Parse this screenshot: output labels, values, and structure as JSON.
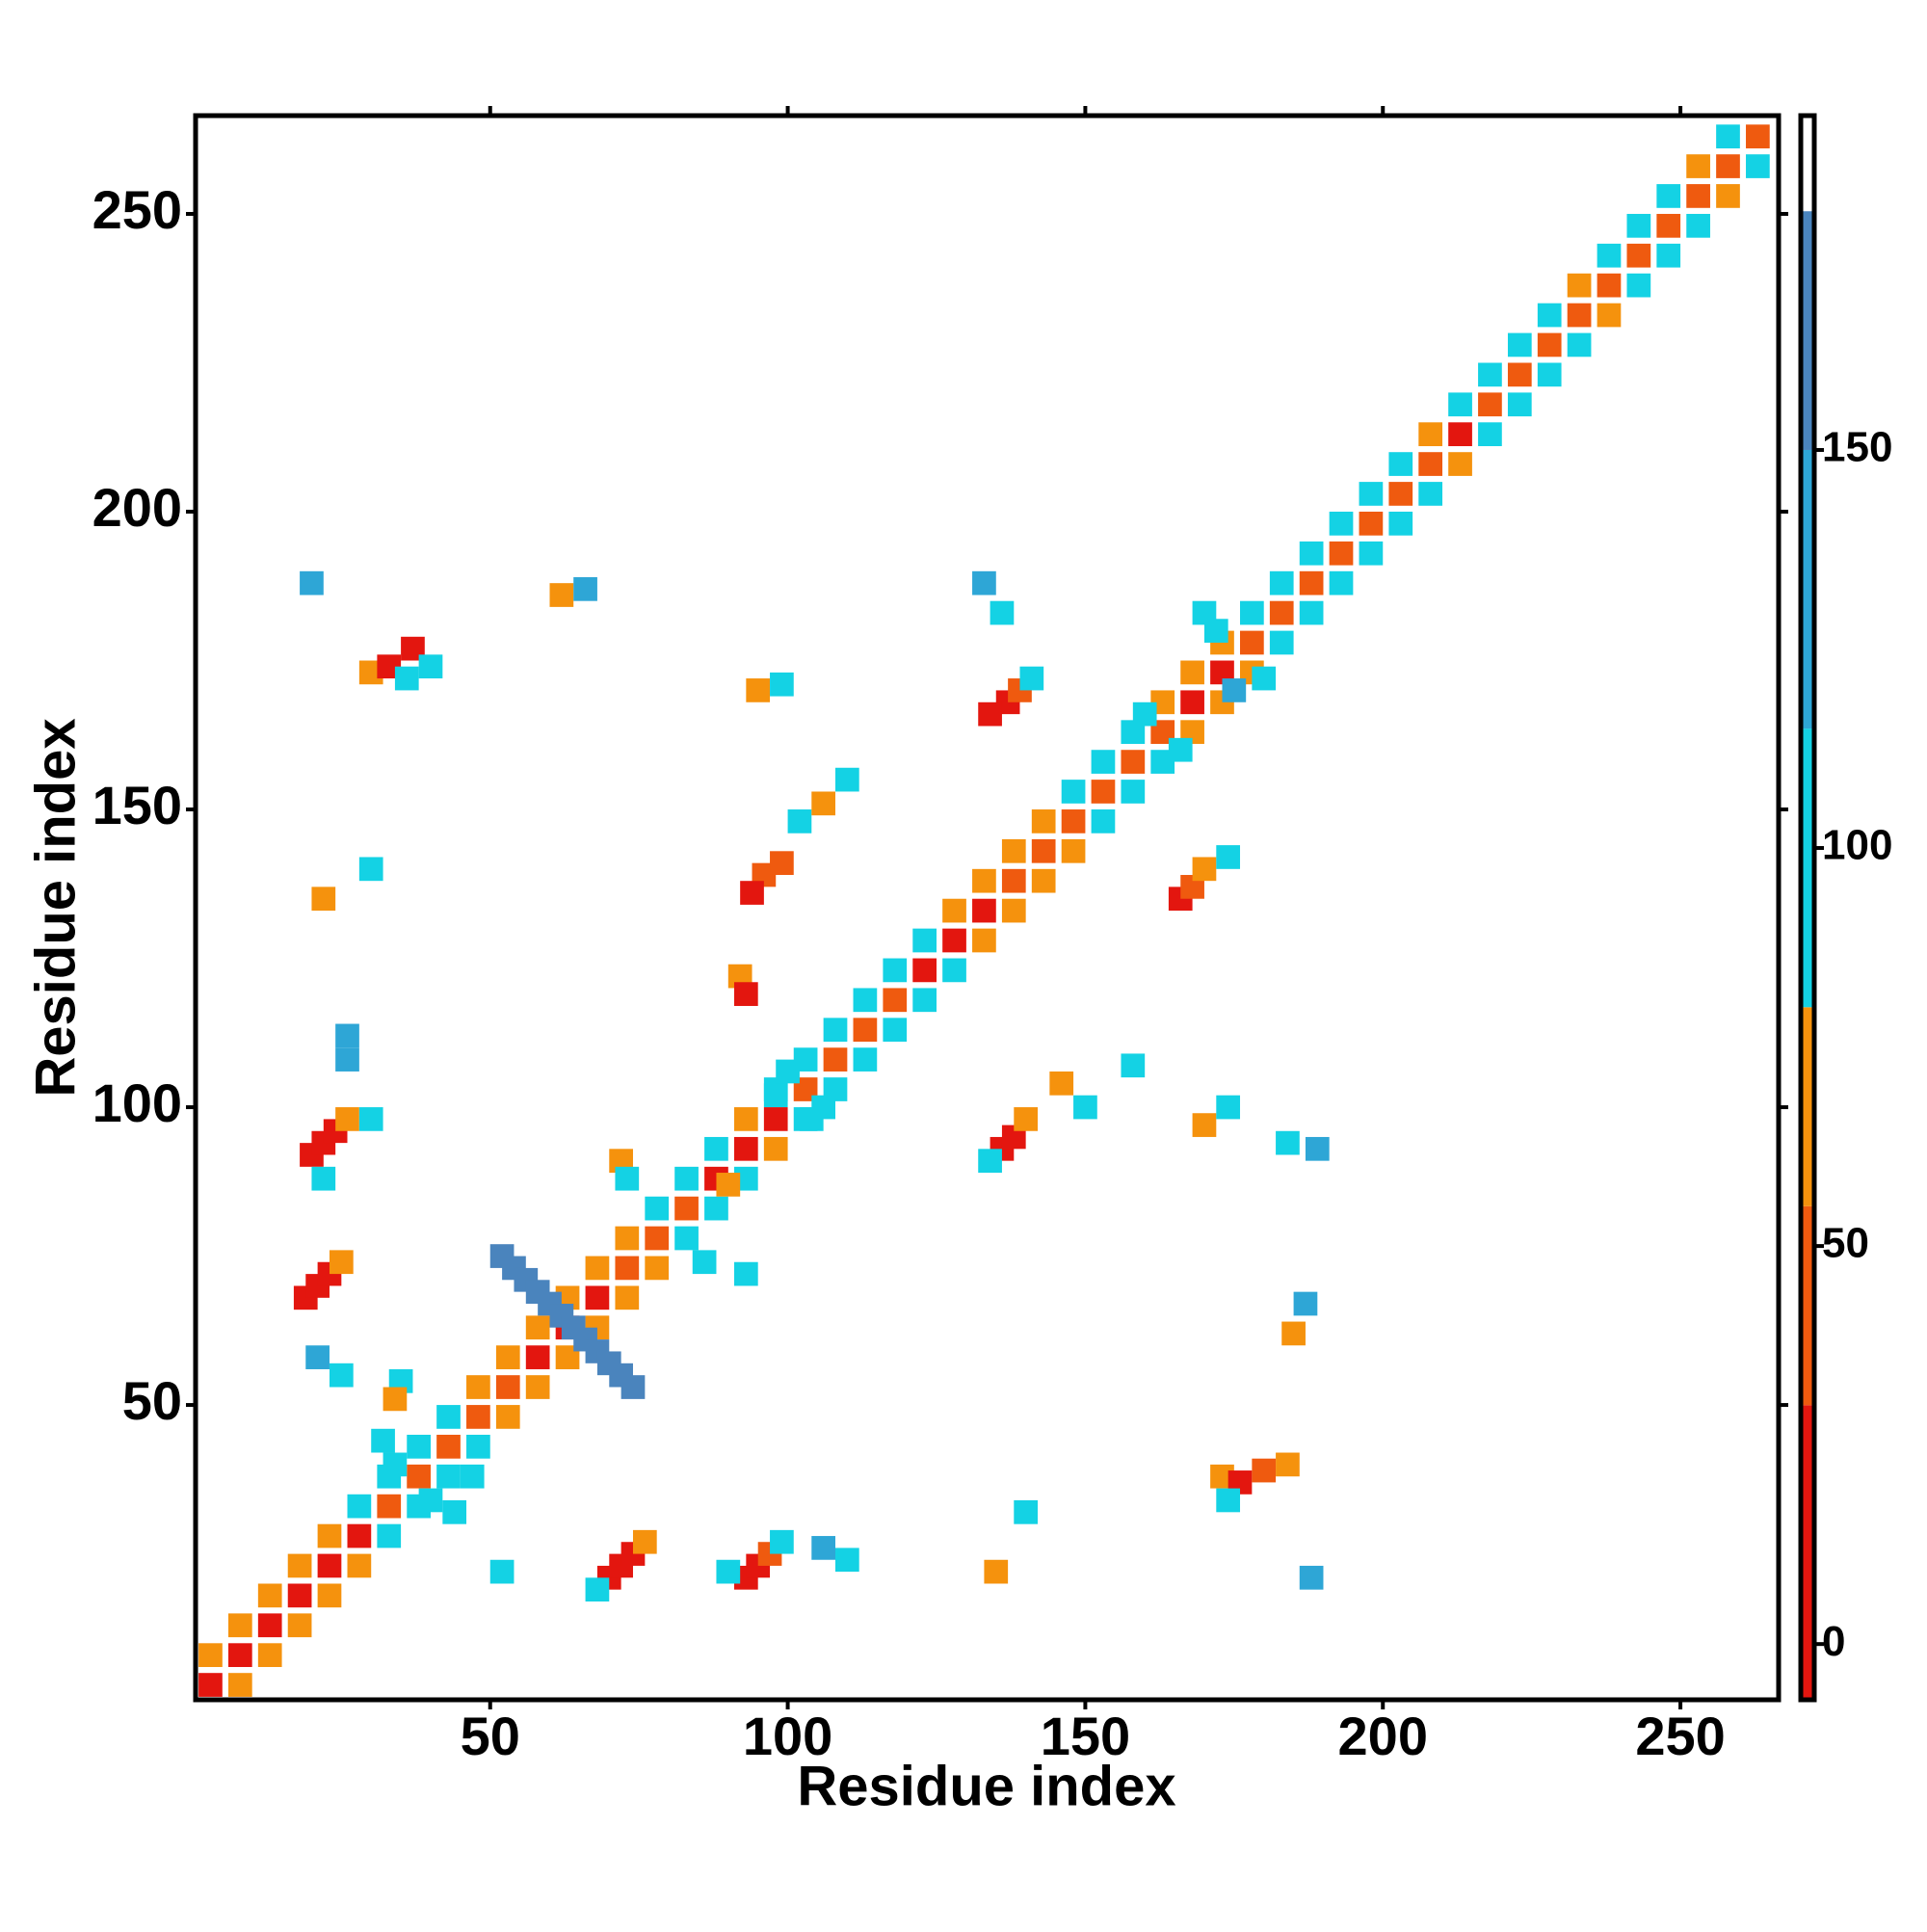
{
  "chart_data": {
    "type": "heatmap",
    "x_label": "Residue index",
    "y_label": "Residue index",
    "xlim": [
      0.5,
      266.5
    ],
    "ylim": [
      0.5,
      266.5
    ],
    "xticks": [
      50,
      100,
      150,
      200,
      250
    ],
    "yticks": [
      50,
      100,
      150,
      200,
      250
    ],
    "clim": [
      -7,
      192
    ],
    "cticks": [
      0,
      50,
      100,
      150
    ],
    "colorscale": [
      {
        "from": -7,
        "to": 30,
        "color": "#e3160f"
      },
      {
        "from": 30,
        "to": 55,
        "color": "#ef5a0f"
      },
      {
        "from": 55,
        "to": 80,
        "color": "#f5920d"
      },
      {
        "from": 80,
        "to": 115,
        "color": "#14d2e4"
      },
      {
        "from": 115,
        "to": 150,
        "color": "#2ea6d6"
      },
      {
        "from": 150,
        "to": 180,
        "color": "#4a84bd"
      },
      {
        "from": 180,
        "to": 192,
        "color": "#ffffff"
      }
    ],
    "cells": [
      [
        3,
        3,
        10
      ],
      [
        8,
        8,
        10
      ],
      [
        13,
        13,
        10
      ],
      [
        18,
        18,
        10
      ],
      [
        23,
        23,
        10
      ],
      [
        28,
        28,
        10
      ],
      [
        33,
        33,
        40
      ],
      [
        38,
        38,
        40
      ],
      [
        43,
        43,
        40
      ],
      [
        48,
        48,
        40
      ],
      [
        53,
        53,
        40
      ],
      [
        58,
        58,
        10
      ],
      [
        63,
        63,
        10
      ],
      [
        68,
        68,
        10
      ],
      [
        73,
        73,
        40
      ],
      [
        78,
        78,
        40
      ],
      [
        83,
        83,
        40
      ],
      [
        88,
        88,
        10
      ],
      [
        93,
        93,
        10
      ],
      [
        98,
        98,
        10
      ],
      [
        103,
        103,
        40
      ],
      [
        108,
        108,
        40
      ],
      [
        113,
        113,
        40
      ],
      [
        118,
        118,
        40
      ],
      [
        123,
        123,
        10
      ],
      [
        128,
        128,
        10
      ],
      [
        133,
        133,
        10
      ],
      [
        138,
        138,
        40
      ],
      [
        143,
        143,
        40
      ],
      [
        148,
        148,
        40
      ],
      [
        153,
        153,
        40
      ],
      [
        158,
        158,
        40
      ],
      [
        163,
        163,
        40
      ],
      [
        168,
        168,
        10
      ],
      [
        173,
        173,
        10
      ],
      [
        178,
        178,
        40
      ],
      [
        183,
        183,
        40
      ],
      [
        188,
        188,
        40
      ],
      [
        193,
        193,
        40
      ],
      [
        198,
        198,
        40
      ],
      [
        203,
        203,
        40
      ],
      [
        208,
        208,
        40
      ],
      [
        213,
        213,
        10
      ],
      [
        218,
        218,
        40
      ],
      [
        223,
        223,
        40
      ],
      [
        228,
        228,
        40
      ],
      [
        233,
        233,
        40
      ],
      [
        238,
        238,
        40
      ],
      [
        243,
        243,
        40
      ],
      [
        248,
        248,
        40
      ],
      [
        253,
        253,
        40
      ],
      [
        258,
        258,
        40
      ],
      [
        263,
        263,
        40
      ],
      [
        3,
        8,
        60
      ],
      [
        8,
        3,
        60
      ],
      [
        8,
        13,
        60
      ],
      [
        13,
        8,
        60
      ],
      [
        13,
        18,
        60
      ],
      [
        18,
        13,
        60
      ],
      [
        18,
        23,
        60
      ],
      [
        23,
        18,
        60
      ],
      [
        23,
        28,
        60
      ],
      [
        28,
        23,
        60
      ],
      [
        28,
        33,
        95
      ],
      [
        33,
        28,
        95
      ],
      [
        33,
        38,
        95
      ],
      [
        38,
        33,
        95
      ],
      [
        38,
        43,
        95
      ],
      [
        43,
        38,
        95
      ],
      [
        43,
        48,
        95
      ],
      [
        48,
        43,
        95
      ],
      [
        48,
        53,
        60
      ],
      [
        53,
        48,
        60
      ],
      [
        53,
        58,
        60
      ],
      [
        58,
        53,
        60
      ],
      [
        58,
        63,
        60
      ],
      [
        63,
        58,
        60
      ],
      [
        63,
        68,
        60
      ],
      [
        68,
        63,
        60
      ],
      [
        68,
        73,
        60
      ],
      [
        73,
        68,
        60
      ],
      [
        73,
        78,
        60
      ],
      [
        78,
        73,
        60
      ],
      [
        78,
        83,
        95
      ],
      [
        83,
        78,
        95
      ],
      [
        83,
        88,
        95
      ],
      [
        88,
        83,
        95
      ],
      [
        88,
        93,
        95
      ],
      [
        93,
        88,
        95
      ],
      [
        93,
        98,
        60
      ],
      [
        98,
        93,
        60
      ],
      [
        98,
        103,
        95
      ],
      [
        103,
        98,
        95
      ],
      [
        103,
        108,
        95
      ],
      [
        108,
        103,
        95
      ],
      [
        108,
        113,
        95
      ],
      [
        113,
        108,
        95
      ],
      [
        113,
        118,
        95
      ],
      [
        118,
        113,
        95
      ],
      [
        118,
        123,
        95
      ],
      [
        123,
        118,
        95
      ],
      [
        123,
        128,
        95
      ],
      [
        128,
        123,
        95
      ],
      [
        128,
        133,
        60
      ],
      [
        133,
        128,
        60
      ],
      [
        133,
        138,
        60
      ],
      [
        138,
        133,
        60
      ],
      [
        138,
        143,
        60
      ],
      [
        143,
        138,
        60
      ],
      [
        143,
        148,
        60
      ],
      [
        148,
        143,
        60
      ],
      [
        148,
        153,
        95
      ],
      [
        153,
        148,
        95
      ],
      [
        153,
        158,
        95
      ],
      [
        158,
        153,
        95
      ],
      [
        158,
        163,
        95
      ],
      [
        163,
        158,
        95
      ],
      [
        163,
        168,
        60
      ],
      [
        168,
        163,
        60
      ],
      [
        168,
        173,
        60
      ],
      [
        173,
        168,
        60
      ],
      [
        173,
        178,
        60
      ],
      [
        178,
        173,
        60
      ],
      [
        178,
        183,
        95
      ],
      [
        183,
        178,
        95
      ],
      [
        183,
        188,
        95
      ],
      [
        188,
        183,
        95
      ],
      [
        188,
        193,
        95
      ],
      [
        193,
        188,
        95
      ],
      [
        193,
        198,
        95
      ],
      [
        198,
        193,
        95
      ],
      [
        198,
        203,
        95
      ],
      [
        203,
        198,
        95
      ],
      [
        203,
        208,
        95
      ],
      [
        208,
        203,
        95
      ],
      [
        208,
        213,
        60
      ],
      [
        213,
        208,
        60
      ],
      [
        213,
        218,
        95
      ],
      [
        218,
        213,
        95
      ],
      [
        218,
        223,
        95
      ],
      [
        223,
        218,
        95
      ],
      [
        223,
        228,
        95
      ],
      [
        228,
        223,
        95
      ],
      [
        228,
        233,
        95
      ],
      [
        233,
        228,
        95
      ],
      [
        233,
        238,
        60
      ],
      [
        238,
        233,
        60
      ],
      [
        238,
        243,
        95
      ],
      [
        243,
        238,
        95
      ],
      [
        243,
        248,
        95
      ],
      [
        248,
        243,
        95
      ],
      [
        248,
        253,
        95
      ],
      [
        253,
        248,
        95
      ],
      [
        253,
        258,
        60
      ],
      [
        258,
        253,
        60
      ],
      [
        258,
        263,
        95
      ],
      [
        263,
        258,
        95
      ],
      [
        20,
        92,
        10
      ],
      [
        22,
        94,
        15
      ],
      [
        24,
        96,
        20
      ],
      [
        26,
        98,
        60
      ],
      [
        22,
        88,
        95
      ],
      [
        30,
        98,
        95
      ],
      [
        19,
        68,
        10
      ],
      [
        21,
        70,
        15
      ],
      [
        23,
        72,
        20
      ],
      [
        25,
        74,
        60
      ],
      [
        30,
        173,
        60
      ],
      [
        33,
        174,
        10
      ],
      [
        37,
        177,
        10
      ],
      [
        36,
        172,
        95
      ],
      [
        40,
        174,
        95
      ],
      [
        22,
        135,
        60
      ],
      [
        30,
        140,
        95
      ],
      [
        26,
        108,
        135
      ],
      [
        26,
        112,
        135
      ],
      [
        21,
        58,
        135
      ],
      [
        25,
        55,
        95
      ],
      [
        35,
        54,
        95
      ],
      [
        34,
        51,
        60
      ],
      [
        20,
        188,
        135
      ],
      [
        62,
        186,
        60
      ],
      [
        66,
        187,
        135
      ],
      [
        52,
        75,
        165
      ],
      [
        54,
        73,
        165
      ],
      [
        56,
        71,
        165
      ],
      [
        58,
        69,
        165
      ],
      [
        60,
        67,
        165
      ],
      [
        62,
        65,
        165
      ],
      [
        64,
        63,
        165
      ],
      [
        66,
        61,
        165
      ],
      [
        68,
        59,
        165
      ],
      [
        70,
        57,
        165
      ],
      [
        72,
        55,
        165
      ],
      [
        74,
        53,
        165
      ],
      [
        72,
        91,
        60
      ],
      [
        73,
        88,
        95
      ],
      [
        96,
        139,
        30
      ],
      [
        99,
        141,
        40
      ],
      [
        94,
        136,
        20
      ],
      [
        102,
        148,
        95
      ],
      [
        106,
        151,
        60
      ],
      [
        110,
        155,
        95
      ],
      [
        95,
        170,
        60
      ],
      [
        99,
        171,
        95
      ],
      [
        92,
        122,
        60
      ],
      [
        93,
        119,
        20
      ],
      [
        137,
        168,
        20
      ],
      [
        139,
        170,
        30
      ],
      [
        141,
        172,
        95
      ],
      [
        134,
        166,
        10
      ],
      [
        133,
        188,
        135
      ],
      [
        136,
        183,
        95
      ],
      [
        70,
        21,
        10
      ],
      [
        72,
        23,
        15
      ],
      [
        74,
        25,
        20
      ],
      [
        76,
        27,
        60
      ],
      [
        68,
        19,
        95
      ],
      [
        93,
        21,
        15
      ],
      [
        95,
        23,
        20
      ],
      [
        97,
        25,
        30
      ],
      [
        99,
        27,
        95
      ],
      [
        90,
        22,
        95
      ],
      [
        106,
        26,
        135
      ],
      [
        110,
        24,
        95
      ],
      [
        52,
        22,
        95
      ],
      [
        47,
        38,
        95
      ],
      [
        136,
        93,
        10
      ],
      [
        138,
        95,
        20
      ],
      [
        140,
        98,
        60
      ],
      [
        134,
        91,
        95
      ],
      [
        166,
        135,
        20
      ],
      [
        168,
        137,
        30
      ],
      [
        170,
        140,
        60
      ],
      [
        174,
        142,
        95
      ],
      [
        170,
        97,
        60
      ],
      [
        174,
        100,
        95
      ],
      [
        146,
        104,
        60
      ],
      [
        158,
        107,
        95
      ],
      [
        150,
        100,
        95
      ],
      [
        185,
        62,
        60
      ],
      [
        187,
        67,
        135
      ],
      [
        173,
        38,
        60
      ],
      [
        176,
        37,
        10
      ],
      [
        180,
        39,
        40
      ],
      [
        174,
        34,
        95
      ],
      [
        184,
        40,
        60
      ],
      [
        188,
        21,
        135
      ],
      [
        140,
        32,
        95
      ],
      [
        135,
        22,
        60
      ],
      [
        184,
        94,
        95
      ],
      [
        189,
        93,
        135
      ],
      [
        90,
        87,
        60
      ],
      [
        93,
        72,
        95
      ],
      [
        86,
        74,
        95
      ],
      [
        98,
        102,
        95
      ],
      [
        104,
        98,
        95
      ],
      [
        100,
        106,
        95
      ],
      [
        106,
        100,
        95
      ],
      [
        34,
        40,
        95
      ],
      [
        40,
        34,
        95
      ],
      [
        32,
        44,
        95
      ],
      [
        44,
        32,
        95
      ],
      [
        172,
        180,
        95
      ],
      [
        180,
        172,
        95
      ],
      [
        175,
        170,
        135
      ],
      [
        170,
        183,
        95
      ],
      [
        160,
        166,
        95
      ],
      [
        166,
        160,
        95
      ]
    ]
  }
}
